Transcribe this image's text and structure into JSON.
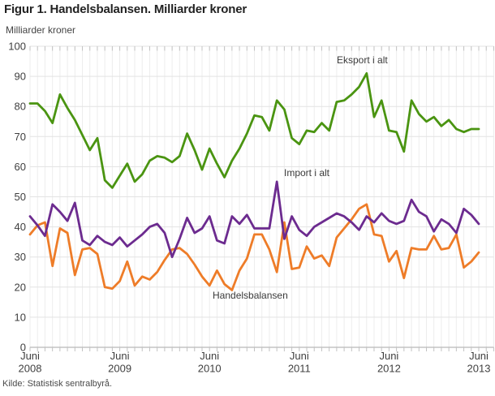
{
  "title": "Figur 1. Handelsbalansen. Milliarder kroner",
  "y_axis_unit": "Milliarder kroner",
  "source": "Kilde: Statistisk sentralbyrå.",
  "annotations": {
    "eksport": "Eksport i alt",
    "import": "Import i alt",
    "handelsbalansen": "Handelsbalansen"
  },
  "colors": {
    "eksport": "#4a9411",
    "import": "#6c2b8f",
    "handelsbalansen": "#ee7c28",
    "grid_horizontal": "#e3e3e3",
    "grid_vertical": "#ededed",
    "tick": "#c2c2c2",
    "zero_axis": "#a6a6a6",
    "axis_text": "#3f3f3f"
  },
  "chart_data": {
    "type": "line",
    "title": "Figur 1. Handelsbalansen. Milliarder kroner",
    "ylabel": "Milliarder kroner",
    "ylim": [
      0,
      100
    ],
    "ytick_step": 10,
    "x_frequency": "monthly",
    "x_start": "Juni 2008",
    "x_end": "Juni 2013",
    "months_total": 61,
    "grid": true,
    "legend_position": "inline-annotations",
    "xtick_labels": [
      {
        "line1": "Juni",
        "line2": "2008"
      },
      {
        "line1": "Juni",
        "line2": "2009"
      },
      {
        "line1": "Juni",
        "line2": "2010"
      },
      {
        "line1": "Juni",
        "line2": "2011"
      },
      {
        "line1": "Juni",
        "line2": "2012"
      },
      {
        "line1": "Juni",
        "line2": "2013"
      }
    ],
    "series": [
      {
        "name": "Eksport i alt",
        "color": "#4a9411",
        "values": [
          81,
          81,
          78.5,
          74.5,
          84,
          79.5,
          75.5,
          70.5,
          65.5,
          69.5,
          55.5,
          53,
          57,
          61,
          55,
          57.5,
          62,
          63.5,
          63,
          61.5,
          63.5,
          71,
          65.5,
          59,
          66,
          61,
          56.5,
          62,
          66,
          71,
          77,
          76.5,
          72,
          82,
          79,
          69.5,
          67.5,
          72,
          71.5,
          74.5,
          72,
          81.5,
          82,
          84,
          86.5,
          91,
          76.5,
          82,
          72,
          71.5,
          65,
          82,
          77.5,
          75,
          76.5,
          73.5,
          75.5,
          72.5,
          71.5,
          72.5,
          72.5
        ]
      },
      {
        "name": "Import i alt",
        "color": "#6c2b8f",
        "values": [
          43.5,
          40.5,
          37,
          47.5,
          45,
          42,
          48,
          35.5,
          34,
          37,
          35,
          34,
          36.5,
          33.5,
          35.5,
          37.5,
          40,
          41,
          38,
          30,
          36,
          43,
          38,
          39.5,
          43.5,
          35.5,
          34.5,
          43.5,
          41,
          44,
          39.5,
          39.5,
          39.5,
          55,
          36,
          43.5,
          39,
          37,
          40,
          41.5,
          43,
          44.5,
          43.5,
          41.5,
          39,
          43.5,
          41.5,
          44.5,
          42,
          41,
          42,
          49,
          45,
          43.5,
          38.5,
          42.5,
          41,
          38,
          46,
          44,
          41
        ]
      },
      {
        "name": "Handelsbalansen",
        "color": "#ee7c28",
        "values": [
          37.5,
          40.5,
          41.5,
          27,
          39.5,
          38,
          24,
          32.5,
          33,
          31,
          20,
          19.5,
          22,
          28.5,
          20.5,
          23.5,
          22.5,
          25,
          29,
          32.5,
          33,
          31,
          27.5,
          23.5,
          20.5,
          25.5,
          21,
          19,
          25.5,
          29.5,
          37.5,
          37.5,
          32.5,
          25,
          41.5,
          26,
          26.5,
          33.5,
          29.5,
          30.5,
          27,
          36.5,
          39.5,
          42.5,
          46,
          47.5,
          37.5,
          37,
          28.5,
          32,
          23,
          33,
          32.5,
          32.5,
          37,
          32.5,
          33,
          37.5,
          26.5,
          28.5,
          31.5
        ]
      }
    ]
  }
}
